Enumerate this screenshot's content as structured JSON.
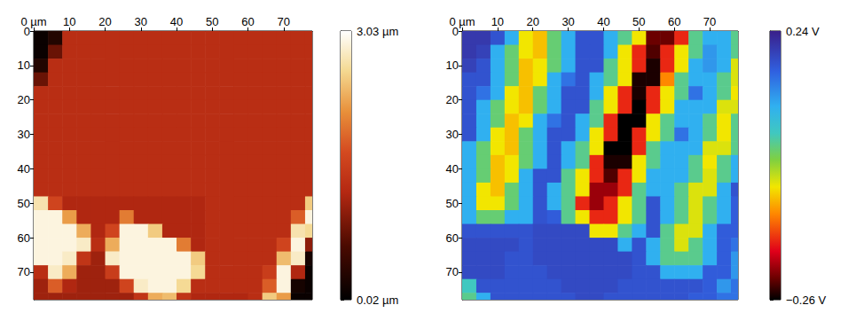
{
  "chart_data": [
    {
      "type": "heatmap",
      "x": [
        2,
        6,
        10,
        14,
        18,
        22,
        26,
        30,
        34,
        38,
        42,
        46,
        50,
        54,
        58,
        62,
        66,
        70,
        74,
        78
      ],
      "y": [
        2,
        6,
        10,
        14,
        18,
        22,
        26,
        30,
        34,
        38,
        42,
        46,
        50,
        54,
        58,
        62,
        66,
        70,
        74,
        78
      ],
      "xlim": [
        0,
        78
      ],
      "ylim": [
        0,
        78
      ],
      "xticks": [
        {
          "value": 0,
          "label": "0 µm"
        },
        10,
        20,
        30,
        40,
        50,
        60,
        70
      ],
      "yticks": [
        0,
        10,
        20,
        30,
        40,
        50,
        60,
        70
      ],
      "values": [
        [
          0.1,
          0.3,
          1.3,
          1.3,
          1.3,
          1.3,
          1.3,
          1.3,
          1.3,
          1.3,
          1.3,
          1.3,
          1.3,
          1.3,
          1.3,
          1.3,
          1.3,
          1.3,
          1.3,
          1.3
        ],
        [
          0.1,
          0.8,
          1.3,
          1.3,
          1.3,
          1.3,
          1.3,
          1.3,
          1.3,
          1.3,
          1.3,
          1.3,
          1.3,
          1.3,
          1.3,
          1.3,
          1.3,
          1.3,
          1.3,
          1.3
        ],
        [
          0.3,
          1.3,
          1.3,
          1.3,
          1.3,
          1.3,
          1.3,
          1.3,
          1.3,
          1.3,
          1.3,
          1.3,
          1.3,
          1.3,
          1.3,
          1.3,
          1.3,
          1.3,
          1.3,
          1.3
        ],
        [
          0.8,
          1.3,
          1.3,
          1.3,
          1.3,
          1.3,
          1.3,
          1.3,
          1.3,
          1.3,
          1.3,
          1.3,
          1.3,
          1.3,
          1.3,
          1.3,
          1.3,
          1.3,
          1.3,
          1.3
        ],
        [
          1.3,
          1.3,
          1.3,
          1.3,
          1.3,
          1.3,
          1.3,
          1.3,
          1.3,
          1.3,
          1.3,
          1.3,
          1.3,
          1.3,
          1.3,
          1.3,
          1.3,
          1.3,
          1.3,
          1.3
        ],
        [
          1.3,
          1.3,
          1.3,
          1.3,
          1.3,
          1.3,
          1.3,
          1.3,
          1.3,
          1.3,
          1.3,
          1.3,
          1.3,
          1.3,
          1.3,
          1.3,
          1.3,
          1.3,
          1.3,
          1.3
        ],
        [
          1.3,
          1.3,
          1.3,
          1.3,
          1.3,
          1.3,
          1.3,
          1.3,
          1.3,
          1.3,
          1.3,
          1.3,
          1.3,
          1.3,
          1.3,
          1.3,
          1.3,
          1.3,
          1.3,
          1.3
        ],
        [
          1.3,
          1.3,
          1.3,
          1.3,
          1.3,
          1.3,
          1.3,
          1.3,
          1.3,
          1.3,
          1.3,
          1.3,
          1.3,
          1.3,
          1.3,
          1.3,
          1.3,
          1.3,
          1.3,
          1.3
        ],
        [
          1.3,
          1.3,
          1.3,
          1.3,
          1.3,
          1.3,
          1.3,
          1.3,
          1.3,
          1.3,
          1.3,
          1.3,
          1.3,
          1.3,
          1.3,
          1.3,
          1.3,
          1.3,
          1.3,
          1.3
        ],
        [
          1.3,
          1.3,
          1.3,
          1.3,
          1.3,
          1.3,
          1.3,
          1.3,
          1.3,
          1.3,
          1.3,
          1.3,
          1.3,
          1.3,
          1.3,
          1.3,
          1.3,
          1.3,
          1.3,
          1.3
        ],
        [
          1.3,
          1.3,
          1.3,
          1.3,
          1.3,
          1.3,
          1.3,
          1.3,
          1.3,
          1.3,
          1.3,
          1.3,
          1.3,
          1.3,
          1.3,
          1.3,
          1.3,
          1.3,
          1.3,
          1.3
        ],
        [
          1.3,
          1.3,
          1.3,
          1.3,
          1.3,
          1.3,
          1.3,
          1.3,
          1.3,
          1.3,
          1.3,
          1.3,
          1.3,
          1.3,
          1.3,
          1.3,
          1.3,
          1.3,
          1.3,
          1.3
        ],
        [
          2.7,
          1.6,
          1.2,
          1.2,
          1.2,
          1.2,
          1.2,
          1.2,
          1.2,
          1.2,
          1.2,
          1.2,
          1.3,
          1.3,
          1.3,
          1.3,
          1.3,
          1.3,
          1.3,
          2.5
        ],
        [
          2.9,
          2.9,
          2.2,
          1.2,
          1.2,
          1.2,
          2.0,
          1.2,
          1.2,
          1.2,
          1.2,
          1.2,
          1.3,
          1.3,
          1.3,
          1.3,
          1.3,
          1.3,
          1.8,
          2.9
        ],
        [
          2.9,
          2.9,
          2.9,
          2.3,
          1.2,
          1.6,
          2.9,
          2.9,
          2.5,
          1.2,
          1.2,
          1.2,
          1.3,
          1.3,
          1.3,
          1.3,
          1.3,
          1.3,
          2.7,
          2.6
        ],
        [
          2.9,
          2.9,
          2.9,
          2.8,
          1.3,
          2.3,
          2.9,
          2.9,
          2.9,
          2.9,
          2.0,
          1.2,
          1.3,
          1.3,
          1.3,
          1.3,
          1.3,
          1.6,
          2.9,
          1.0
        ],
        [
          2.9,
          2.9,
          2.8,
          1.4,
          1.1,
          2.8,
          2.9,
          2.9,
          2.9,
          2.9,
          2.9,
          2.5,
          1.3,
          1.3,
          1.3,
          1.3,
          1.3,
          2.4,
          2.8,
          0.2
        ],
        [
          1.3,
          2.8,
          2.3,
          1.1,
          1.1,
          1.5,
          2.9,
          2.9,
          2.9,
          2.9,
          2.9,
          2.6,
          1.3,
          1.3,
          1.3,
          1.3,
          1.5,
          2.9,
          1.2,
          0.1
        ],
        [
          1.1,
          1.8,
          1.2,
          1.1,
          1.1,
          1.1,
          1.6,
          2.8,
          2.9,
          2.9,
          2.6,
          1.3,
          1.3,
          1.3,
          1.3,
          1.3,
          1.8,
          2.9,
          0.2,
          0.1
        ],
        [
          1.1,
          1.1,
          1.1,
          1.1,
          1.1,
          1.1,
          1.1,
          1.4,
          2.3,
          2.4,
          1.4,
          1.2,
          1.2,
          1.2,
          1.2,
          1.3,
          2.5,
          2.2,
          0.1,
          0.1
        ]
      ],
      "colorbar_range": [
        0.02,
        3.03
      ],
      "colorbar_ticks": [
        {
          "value": 3.03,
          "label": "3.03 µm"
        },
        {
          "value": 0.02,
          "label": "0.02 µm"
        }
      ]
    },
    {
      "type": "heatmap",
      "x": [
        2,
        6,
        10,
        14,
        18,
        22,
        26,
        30,
        34,
        38,
        42,
        46,
        50,
        54,
        58,
        62,
        66,
        70,
        74,
        78
      ],
      "y": [
        2,
        6,
        10,
        14,
        18,
        22,
        26,
        30,
        34,
        38,
        42,
        46,
        50,
        54,
        58,
        62,
        66,
        70,
        74,
        78
      ],
      "xlim": [
        0,
        78
      ],
      "ylim": [
        0,
        78
      ],
      "xticks": [
        {
          "value": 0,
          "label": "0 µm"
        },
        10,
        20,
        30,
        40,
        50,
        60,
        70
      ],
      "yticks": [
        0,
        10,
        20,
        30,
        40,
        50,
        60,
        70
      ],
      "values": [
        [
          0.21,
          0.21,
          0.18,
          0.1,
          -0.05,
          -0.07,
          0.02,
          0.1,
          0.18,
          0.18,
          0.1,
          0.03,
          -0.05,
          -0.22,
          -0.22,
          -0.15,
          0.03,
          0.1,
          0.1,
          0.03
        ],
        [
          0.21,
          0.2,
          0.1,
          0.02,
          -0.05,
          -0.07,
          0.02,
          0.1,
          0.18,
          0.18,
          0.1,
          -0.05,
          -0.15,
          -0.23,
          -0.15,
          -0.05,
          0.03,
          0.12,
          0.1,
          0.03
        ],
        [
          0.2,
          0.18,
          0.1,
          0.02,
          -0.07,
          -0.05,
          0.02,
          0.1,
          0.18,
          0.18,
          0.03,
          -0.05,
          -0.15,
          -0.25,
          -0.15,
          -0.05,
          0.1,
          0.12,
          0.1,
          -0.04
        ],
        [
          0.18,
          0.18,
          0.1,
          0.02,
          -0.07,
          -0.05,
          0.1,
          0.15,
          0.18,
          0.1,
          0.03,
          -0.05,
          -0.25,
          -0.25,
          -0.1,
          0.03,
          0.1,
          0.1,
          0.03,
          -0.04
        ],
        [
          0.18,
          0.15,
          0.1,
          -0.05,
          -0.07,
          0.02,
          0.1,
          0.18,
          0.18,
          0.1,
          -0.05,
          -0.15,
          -0.25,
          -0.15,
          -0.05,
          0.03,
          0.15,
          0.1,
          0.03,
          -0.05
        ],
        [
          0.18,
          0.1,
          0.02,
          -0.05,
          -0.07,
          0.02,
          0.1,
          0.18,
          0.18,
          0.03,
          -0.05,
          -0.15,
          -0.26,
          -0.15,
          -0.05,
          0.1,
          0.1,
          0.1,
          -0.04,
          -0.04
        ],
        [
          0.18,
          0.1,
          0.02,
          -0.07,
          -0.05,
          0.1,
          0.15,
          0.18,
          0.1,
          0.03,
          -0.15,
          -0.26,
          -0.26,
          -0.05,
          0.03,
          0.1,
          0.1,
          0.03,
          -0.05,
          0.03
        ],
        [
          0.18,
          0.1,
          -0.05,
          -0.07,
          0.02,
          0.1,
          0.18,
          0.18,
          0.1,
          -0.05,
          -0.15,
          -0.26,
          -0.15,
          -0.05,
          0.03,
          0.15,
          0.1,
          0.03,
          -0.05,
          0.03
        ],
        [
          0.1,
          0.02,
          -0.05,
          -0.07,
          0.02,
          0.1,
          0.18,
          0.1,
          0.03,
          -0.05,
          -0.26,
          -0.26,
          -0.15,
          0.03,
          0.1,
          0.1,
          0.1,
          -0.04,
          -0.04,
          0.03
        ],
        [
          0.1,
          0.02,
          -0.07,
          -0.05,
          0.02,
          0.1,
          0.18,
          0.1,
          0.03,
          -0.15,
          -0.25,
          -0.25,
          -0.05,
          0.03,
          0.1,
          0.1,
          0.03,
          -0.05,
          0.03,
          0.1
        ],
        [
          0.1,
          0.02,
          -0.07,
          -0.05,
          0.1,
          0.18,
          0.18,
          0.03,
          -0.05,
          -0.15,
          -0.23,
          -0.15,
          -0.05,
          0.1,
          0.1,
          0.1,
          0.03,
          -0.04,
          0.03,
          0.1
        ],
        [
          0.1,
          -0.05,
          -0.07,
          0.02,
          0.1,
          0.18,
          0.1,
          0.03,
          -0.05,
          -0.2,
          -0.2,
          -0.15,
          0.03,
          0.1,
          0.1,
          0.03,
          -0.04,
          -0.04,
          0.1,
          0.18
        ],
        [
          0.1,
          -0.05,
          -0.05,
          0.02,
          0.1,
          0.18,
          0.1,
          0.03,
          -0.15,
          -0.2,
          -0.15,
          -0.05,
          0.03,
          0.18,
          0.1,
          0.03,
          -0.04,
          0.03,
          0.1,
          0.17
        ],
        [
          0.1,
          0.02,
          0.02,
          0.1,
          0.1,
          0.18,
          0.17,
          0.03,
          -0.05,
          -0.15,
          -0.15,
          -0.05,
          0.03,
          0.18,
          0.1,
          0.03,
          -0.04,
          0.03,
          0.1,
          0.17
        ],
        [
          0.18,
          0.18,
          0.18,
          0.18,
          0.18,
          0.19,
          0.19,
          0.19,
          0.19,
          -0.05,
          -0.05,
          0.03,
          0.1,
          0.18,
          0.03,
          -0.04,
          -0.04,
          0.1,
          0.17,
          0.17
        ],
        [
          0.19,
          0.19,
          0.19,
          0.19,
          0.18,
          0.19,
          0.19,
          0.19,
          0.19,
          0.19,
          0.19,
          0.1,
          0.18,
          0.1,
          0.03,
          -0.04,
          0.03,
          0.1,
          0.17,
          0.15
        ],
        [
          0.19,
          0.19,
          0.19,
          0.18,
          0.18,
          0.19,
          0.19,
          0.19,
          0.19,
          0.19,
          0.19,
          0.19,
          0.18,
          0.1,
          0.03,
          0.03,
          0.03,
          0.1,
          0.17,
          0.12
        ],
        [
          0.19,
          0.19,
          0.19,
          0.18,
          0.18,
          0.18,
          0.19,
          0.19,
          0.19,
          0.19,
          0.19,
          0.19,
          0.18,
          0.18,
          0.1,
          0.1,
          0.1,
          0.17,
          0.17,
          0.12
        ],
        [
          0.05,
          0.18,
          0.18,
          0.18,
          0.18,
          0.18,
          0.18,
          0.19,
          0.19,
          0.19,
          0.19,
          0.18,
          0.18,
          0.18,
          0.18,
          0.18,
          0.18,
          0.17,
          0.12,
          0.15
        ],
        [
          0.03,
          0.1,
          0.18,
          0.18,
          0.18,
          0.18,
          0.18,
          0.18,
          0.19,
          0.19,
          0.18,
          0.18,
          0.18,
          0.18,
          0.18,
          0.18,
          0.17,
          0.17,
          0.15,
          0.15
        ]
      ],
      "colorbar_range": [
        -0.26,
        0.24
      ],
      "colorbar_ticks": [
        {
          "value": 0.24,
          "label": "0.24 V"
        },
        {
          "value": -0.26,
          "label": "−0.26 V"
        }
      ]
    }
  ]
}
